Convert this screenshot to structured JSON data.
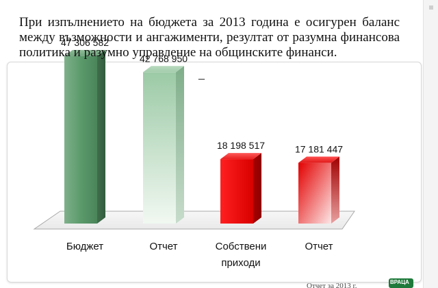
{
  "heading": "При изпълнението на бюджета за 2013 година е осигурен баланс между възможности и ангажименти, резултат от разумна финансова политика и разумно управление на общинските финанси.",
  "heading_mark": "–",
  "footer": "Отчет за 2013 г.",
  "logo_label": "ВРАЦА",
  "colors": {
    "green": "#4f8e5f",
    "green_light": "#c9e2cd",
    "red": "#e00000",
    "red_light": "#f07a7a"
  },
  "chart_data": {
    "type": "bar",
    "title": "",
    "xlabel": "",
    "ylabel": "",
    "ylim": [
      0,
      50000000
    ],
    "grid": false,
    "categories": [
      [
        "Бюджет"
      ],
      [
        "Отчет"
      ],
      [
        "Собствени",
        "приходи"
      ],
      [
        "Отчет"
      ]
    ],
    "values": [
      47306582,
      42768950,
      18198517,
      17181447
    ],
    "value_labels": [
      "47 306 582",
      "42 768 950",
      "18 198 517",
      "17 181 447"
    ],
    "bar_colors": [
      "green",
      "green_light",
      "red",
      "red_light"
    ]
  }
}
